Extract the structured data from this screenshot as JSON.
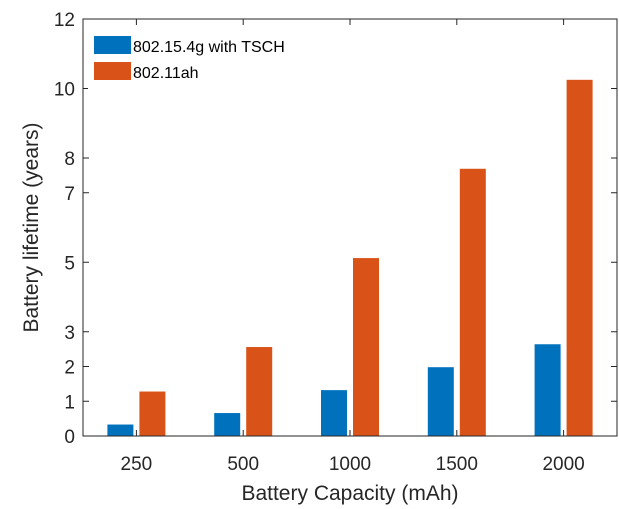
{
  "chart_data": {
    "type": "bar",
    "categories": [
      "250",
      "500",
      "1000",
      "1500",
      "2000"
    ],
    "series": [
      {
        "name": "802.15.4g with TSCH",
        "color": "#0072BD",
        "values": [
          0.33,
          0.66,
          1.32,
          1.98,
          2.64
        ]
      },
      {
        "name": "802.11ah",
        "color": "#D95319",
        "values": [
          1.28,
          2.56,
          5.12,
          7.69,
          10.25
        ]
      }
    ],
    "xlabel": "Battery Capacity (mAh)",
    "ylabel": "Battery lifetime (years)",
    "ylim": [
      0,
      12
    ],
    "yticks": [
      0,
      1,
      2,
      3,
      5,
      7,
      8,
      10,
      12
    ],
    "legend_position": "top-left",
    "grid": false
  }
}
